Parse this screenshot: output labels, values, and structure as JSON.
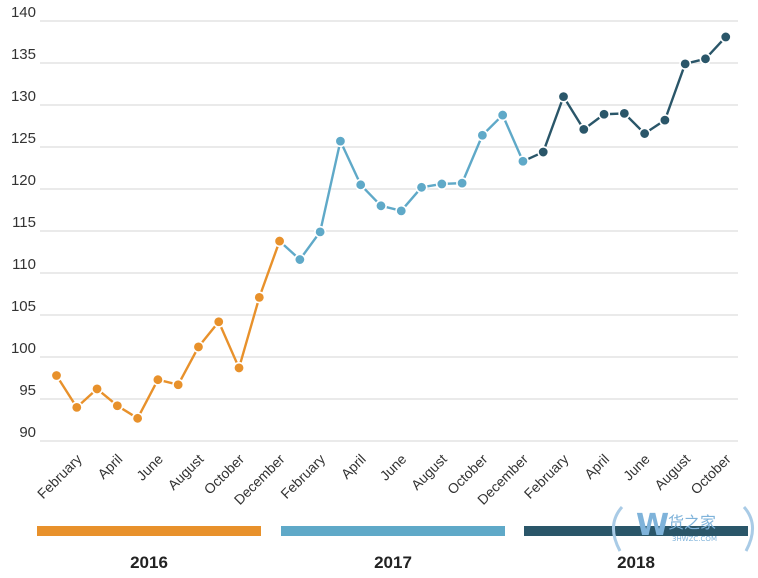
{
  "chart_data": {
    "type": "line",
    "title": "",
    "xlabel": "",
    "ylabel": "",
    "ylim": [
      90,
      140
    ],
    "yticks": [
      90,
      95,
      100,
      105,
      110,
      115,
      120,
      125,
      130,
      135,
      140
    ],
    "grid": true,
    "xtick_labels": [
      "February",
      "April",
      "June",
      "August",
      "October",
      "December",
      "February",
      "April",
      "June",
      "August",
      "October",
      "December",
      "February",
      "April",
      "June",
      "August",
      "October"
    ],
    "series": [
      {
        "name": "2016",
        "color": "#E8912B",
        "x": [
          "January",
          "February",
          "March",
          "April",
          "May",
          "June",
          "July",
          "August",
          "September",
          "October",
          "November",
          "December"
        ],
        "values": [
          97.8,
          94.0,
          96.2,
          94.2,
          92.7,
          97.3,
          96.7,
          101.2,
          104.2,
          98.7,
          107.1,
          113.8
        ]
      },
      {
        "name": "2017",
        "color": "#5FA9C8",
        "x": [
          "January",
          "February",
          "March",
          "April",
          "May",
          "June",
          "July",
          "August",
          "September",
          "October",
          "November",
          "December"
        ],
        "values": [
          111.6,
          114.9,
          125.7,
          120.5,
          118.0,
          117.4,
          120.2,
          120.6,
          120.7,
          126.4,
          128.8,
          123.3
        ]
      },
      {
        "name": "2018",
        "color": "#2A5669",
        "x": [
          "January",
          "February",
          "March",
          "April",
          "May",
          "June",
          "July",
          "August",
          "September",
          "October"
        ],
        "values": [
          124.4,
          131.0,
          127.1,
          128.9,
          129.0,
          126.6,
          128.2,
          134.9,
          135.5,
          138.1
        ]
      }
    ],
    "legend": {
      "placement": "bottom",
      "items": [
        {
          "label": "2016",
          "color": "#E8912B"
        },
        {
          "label": "2017",
          "color": "#5FA9C8"
        },
        {
          "label": "2018",
          "color": "#2A5669"
        }
      ]
    }
  },
  "watermark": {
    "logo_letter": "W",
    "text": "货之家",
    "url": "3HWZC.COM",
    "color": "#7FB3DA"
  }
}
